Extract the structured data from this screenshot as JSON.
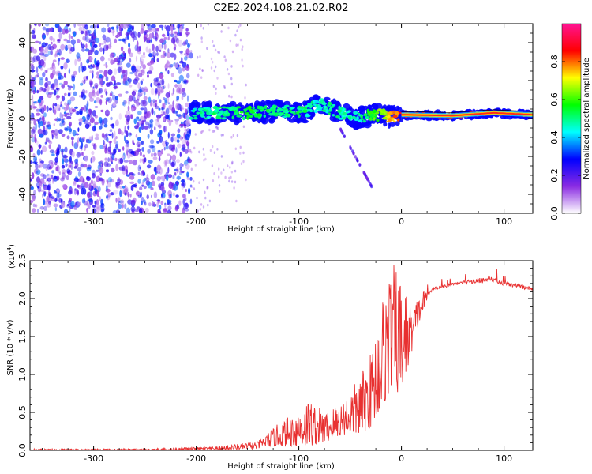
{
  "title": "C2E2.2024.108.21.02.R02",
  "chart_data": [
    {
      "type": "heatmap",
      "xlabel": "Height of straight line (km)",
      "ylabel": "Frequency (Hz)",
      "xlim": [
        -362,
        128
      ],
      "ylim": [
        -50,
        50
      ],
      "xticks": [
        -300,
        -200,
        -100,
        0,
        100
      ],
      "yticks": [
        -40,
        -20,
        0,
        20,
        40
      ],
      "colorbar": {
        "label": "Normalized spectral amplitude",
        "range": [
          0.0,
          1.0
        ],
        "ticks": [
          0.0,
          0.2,
          0.4,
          0.6,
          0.8
        ],
        "colormap": [
          "#ffffff",
          "#8a2be2",
          "#0000ff",
          "#00ffff",
          "#00ff00",
          "#ffff00",
          "#ff0000",
          "#ff1493"
        ]
      },
      "noise_region": {
        "x_range": [
          -362,
          -205
        ],
        "freq_range": [
          -50,
          50
        ],
        "amplitude_range": [
          0.05,
          0.35
        ]
      },
      "signal_band": [
        {
          "x": -205,
          "f": 3,
          "amp": 0.45
        },
        {
          "x": -180,
          "f": 3,
          "amp": 0.5
        },
        {
          "x": -150,
          "f": 3,
          "amp": 0.55
        },
        {
          "x": -120,
          "f": 4,
          "amp": 0.5
        },
        {
          "x": -95,
          "f": 3,
          "amp": 0.5
        },
        {
          "x": -80,
          "f": 8,
          "amp": 0.45
        },
        {
          "x": -65,
          "f": 4,
          "amp": 0.5
        },
        {
          "x": -45,
          "f": 0,
          "amp": 0.45
        },
        {
          "x": -25,
          "f": 2,
          "amp": 0.6
        },
        {
          "x": -10,
          "f": 1,
          "amp": 0.75
        },
        {
          "x": 0,
          "f": 2,
          "amp": 0.85
        },
        {
          "x": 50,
          "f": 1.5,
          "amp": 0.85
        },
        {
          "x": 90,
          "f": 3,
          "amp": 0.8
        },
        {
          "x": 128,
          "f": 2,
          "amp": 0.8
        }
      ],
      "diagonal_feature": {
        "x_range": [
          -60,
          -27
        ],
        "freq_range": [
          -5,
          -38
        ]
      },
      "colors": {
        "noise": "#7b1fe0",
        "signal_core": "#ff2020",
        "signal_edge": "#1020ff"
      }
    },
    {
      "type": "line",
      "xlabel": "Height of straight line (km)",
      "ylabel": "SNR (10 * v/v)",
      "yscale_label": "(x10",
      "yscale_exp": "4",
      "xlim": [
        -362,
        128
      ],
      "ylim": [
        0.0,
        2.5
      ],
      "xticks": [
        -300,
        -200,
        -100,
        0,
        100
      ],
      "yticks": [
        "0.0",
        "0.5",
        "1.0",
        "1.5",
        "2.0",
        "2.5"
      ],
      "color": "#e83030",
      "envelope": [
        {
          "x": -362,
          "lo": 0.0,
          "hi": 0.02
        },
        {
          "x": -250,
          "lo": 0.0,
          "hi": 0.02
        },
        {
          "x": -180,
          "lo": 0.0,
          "hi": 0.05
        },
        {
          "x": -140,
          "lo": 0.02,
          "hi": 0.12
        },
        {
          "x": -125,
          "lo": 0.05,
          "hi": 0.3
        },
        {
          "x": -110,
          "lo": 0.05,
          "hi": 0.45
        },
        {
          "x": -90,
          "lo": 0.05,
          "hi": 0.7
        },
        {
          "x": -75,
          "lo": 0.1,
          "hi": 0.5
        },
        {
          "x": -55,
          "lo": 0.2,
          "hi": 0.7
        },
        {
          "x": -40,
          "lo": 0.2,
          "hi": 1.0
        },
        {
          "x": -30,
          "lo": 0.3,
          "hi": 1.3
        },
        {
          "x": -20,
          "lo": 0.5,
          "hi": 2.0
        },
        {
          "x": -10,
          "lo": 0.8,
          "hi": 2.5
        },
        {
          "x": 0,
          "lo": 0.7,
          "hi": 2.3
        },
        {
          "x": 10,
          "lo": 1.3,
          "hi": 1.9
        },
        {
          "x": 20,
          "lo": 1.8,
          "hi": 2.1
        },
        {
          "x": 30,
          "lo": 2.05,
          "hi": 2.2
        },
        {
          "x": 60,
          "lo": 2.15,
          "hi": 2.28
        },
        {
          "x": 85,
          "lo": 2.1,
          "hi": 2.4
        },
        {
          "x": 100,
          "lo": 2.1,
          "hi": 2.3
        },
        {
          "x": 128,
          "lo": 2.05,
          "hi": 2.2
        }
      ]
    }
  ]
}
